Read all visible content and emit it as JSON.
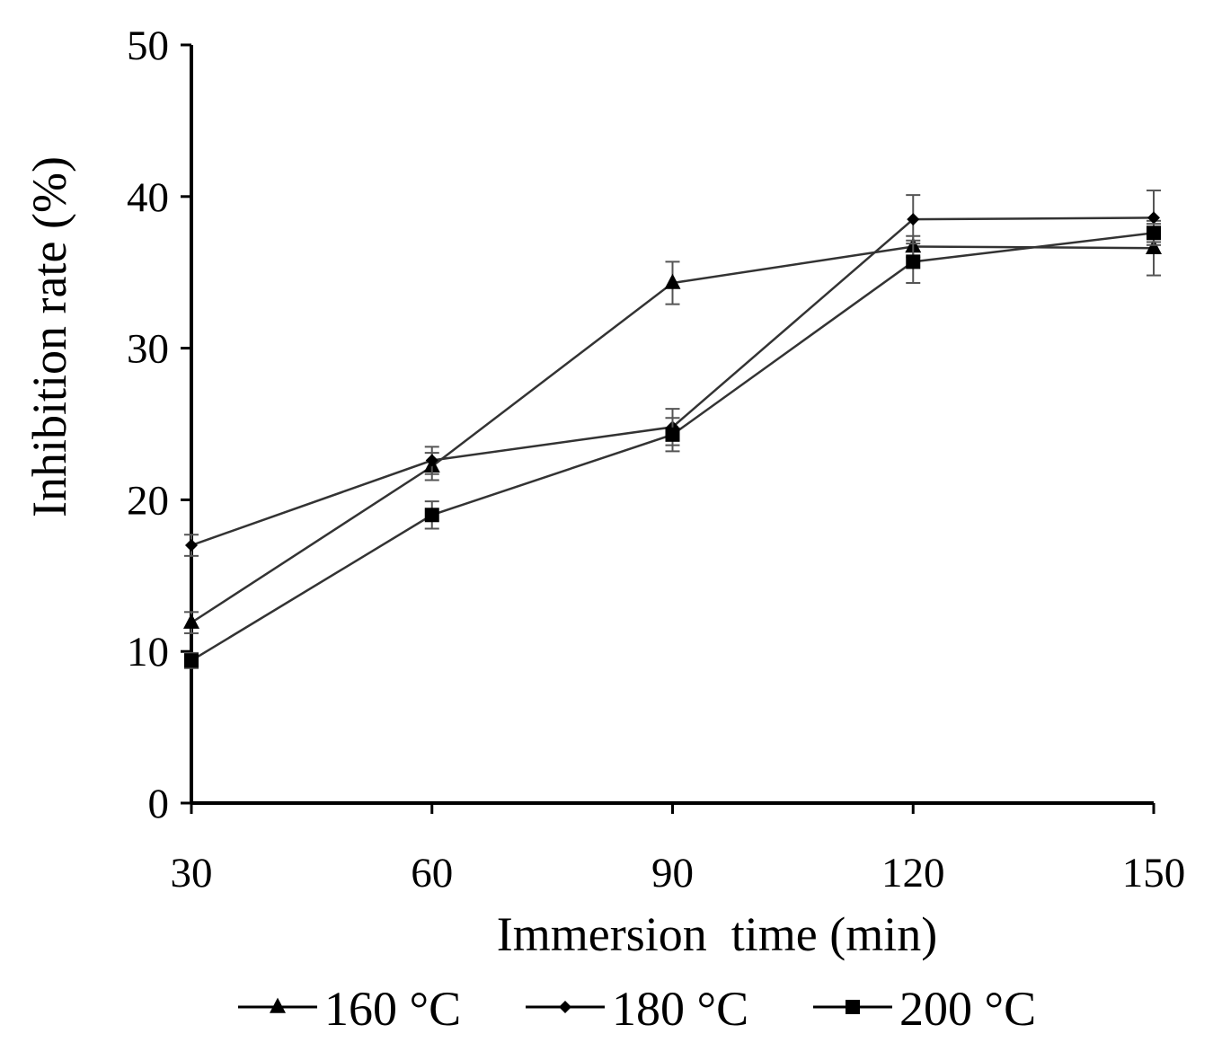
{
  "chart_data": {
    "type": "line",
    "title": "",
    "xlabel": "Immersion  time (min)",
    "ylabel": "Inhibition rate (%)",
    "x": [
      30,
      60,
      90,
      120,
      150
    ],
    "x_tick_labels": [
      "30",
      "60",
      "90",
      "120",
      "150"
    ],
    "y_tick_labels": [
      "0",
      "10",
      "20",
      "30",
      "40",
      "50"
    ],
    "xlim": [
      30,
      150
    ],
    "ylim": [
      0,
      50
    ],
    "grid": false,
    "legend_position": "bottom",
    "series": [
      {
        "name": "160 °C",
        "marker": "triangle",
        "values": [
          11.9,
          22.2,
          34.3,
          36.7,
          36.6
        ],
        "errors": [
          0.7,
          0.9,
          1.4,
          0.7,
          1.8
        ]
      },
      {
        "name": "180 °C",
        "marker": "diamond",
        "values": [
          17.0,
          22.6,
          24.8,
          38.5,
          38.6
        ],
        "errors": [
          0.7,
          0.9,
          1.2,
          1.6,
          1.8
        ]
      },
      {
        "name": "200 °C",
        "marker": "square",
        "values": [
          9.4,
          19.0,
          24.3,
          35.7,
          37.6
        ],
        "errors": [
          0.5,
          0.9,
          1.1,
          1.4,
          0.6
        ]
      }
    ]
  }
}
